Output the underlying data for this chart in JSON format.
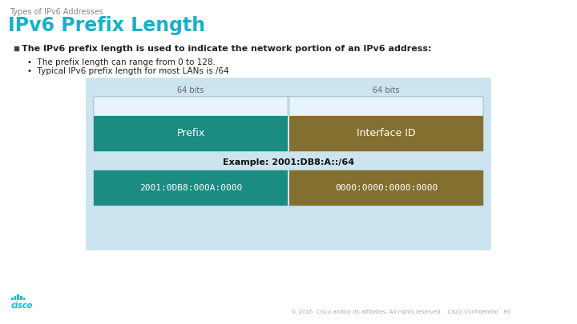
{
  "bg_color": "#ffffff",
  "subtitle_text": "Types of IPv6 Addresses",
  "title_text": "IPv6 Prefix Length",
  "title_color": "#1ab0c8",
  "subtitle_color": "#888888",
  "bullet_bold": "The IPv6 prefix length is used to indicate the network portion of an IPv6 address:",
  "bullet1": "The prefix length can range from 0 to 128.",
  "bullet2": "Typical IPv6 prefix length for most LANs is /64",
  "diagram_bg": "#cce4f0",
  "diagram_bg2": "#d8edf8",
  "teal_color": "#1a8c82",
  "gold_color": "#837030",
  "light_box_color": "#e8f4fc",
  "light_box_border": "#b0ccd8",
  "label_64bits_left": "64 bits",
  "label_64bits_right": "64 bits",
  "prefix_label": "Prefix",
  "interface_label": "Interface ID",
  "example_text": "Example: 2001:DB8:A::/64",
  "prefix_addr": "2001:0DB8:000A:0000",
  "iface_addr": "0000:0000:0000:0000",
  "footer_text": "© 2016  Cisco and/or its affiliates. All rights reserved.   Cisco Confidential",
  "page_num": "80",
  "cisco_color": "#00bceb",
  "text_color": "#222222",
  "bullet_sq_color": "#444444"
}
